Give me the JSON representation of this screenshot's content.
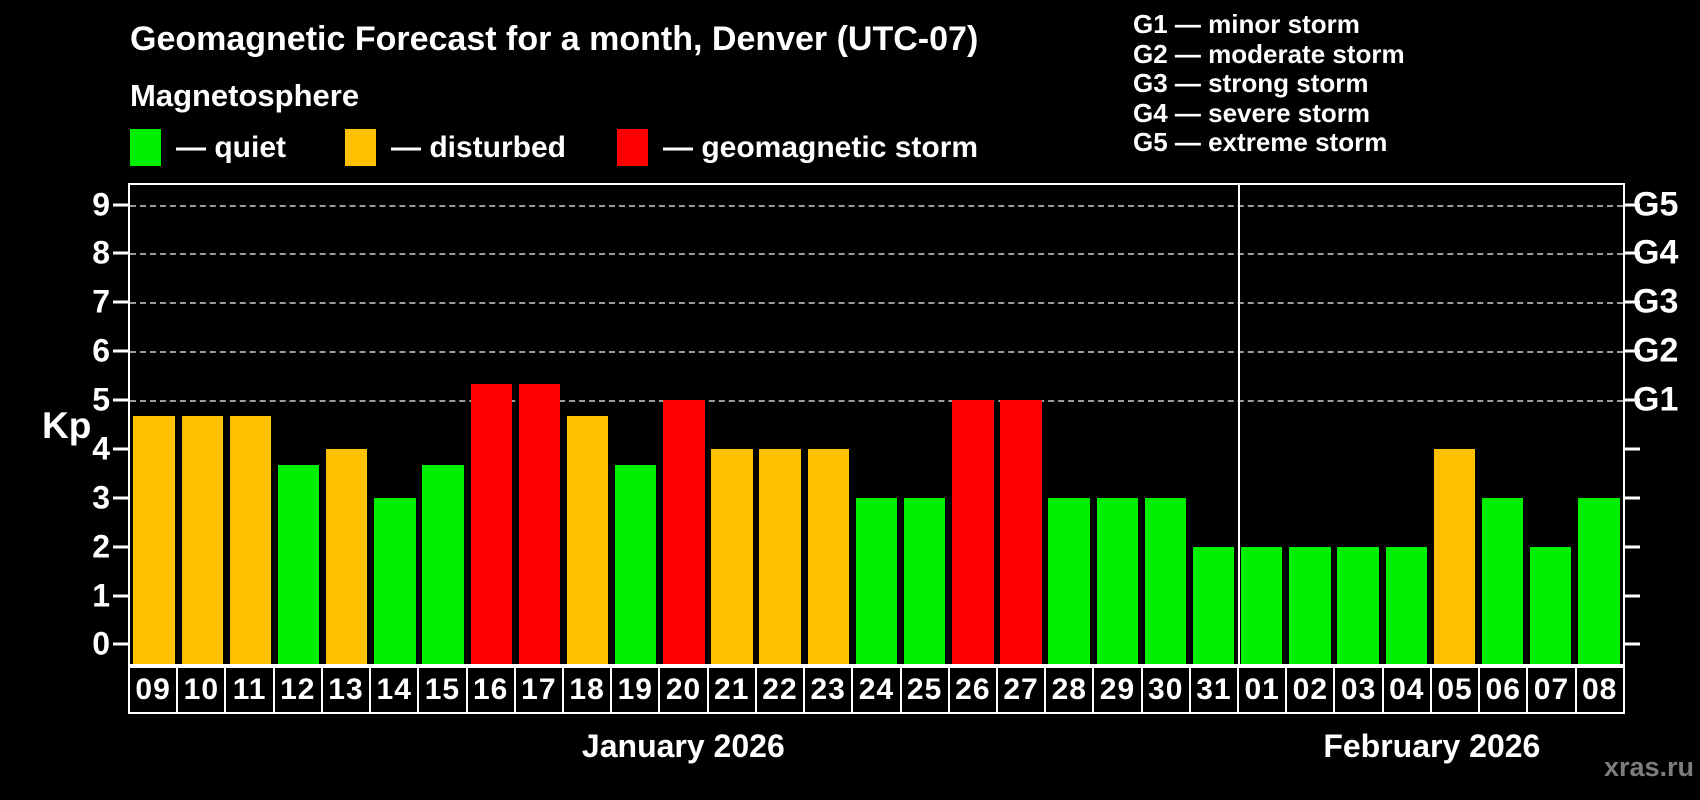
{
  "title": "Geomagnetic Forecast for a month, Denver (UTC-07)",
  "subtitle": "Magnetosphere",
  "legend": {
    "items": [
      {
        "key": "quiet",
        "label": "— quiet",
        "color": "#00ee00"
      },
      {
        "key": "disturbed",
        "label": "— disturbed",
        "color": "#ffc000"
      },
      {
        "key": "storm",
        "label": "— geomagnetic storm",
        "color": "#ff0000"
      }
    ]
  },
  "g_legend": [
    "G1 — minor storm",
    "G2 — moderate storm",
    "G3 — strong storm",
    "G4 — severe storm",
    "G5 — extreme storm"
  ],
  "watermark": "xras.ru",
  "chart_data": {
    "type": "bar",
    "title": "Geomagnetic Forecast for a month, Denver (UTC-07)",
    "xlabel": "",
    "ylabel": "Kp",
    "ylim": [
      0,
      9
    ],
    "ylim_drawn": [
      -0.4,
      9.4
    ],
    "yticks": [
      0,
      1,
      2,
      3,
      4,
      5,
      6,
      7,
      8,
      9
    ],
    "gridlines_kp": [
      5,
      6,
      7,
      8,
      9
    ],
    "grid": "horizontal dashed lines at storm levels G1–G5",
    "legend_position": "top",
    "right_axis": [
      {
        "label": "G1",
        "kp": 5
      },
      {
        "label": "G2",
        "kp": 6
      },
      {
        "label": "G3",
        "kp": 7
      },
      {
        "label": "G4",
        "kp": 8
      },
      {
        "label": "G5",
        "kp": 9
      }
    ],
    "months": [
      {
        "label": "January 2026",
        "days": 23
      },
      {
        "label": "February 2026",
        "days": 8
      }
    ],
    "categories": [
      "09",
      "10",
      "11",
      "12",
      "13",
      "14",
      "15",
      "16",
      "17",
      "18",
      "19",
      "20",
      "21",
      "22",
      "23",
      "24",
      "25",
      "26",
      "27",
      "28",
      "29",
      "30",
      "31",
      "01",
      "02",
      "03",
      "04",
      "05",
      "06",
      "07",
      "08"
    ],
    "values": [
      4.67,
      4.67,
      4.67,
      3.67,
      4,
      3,
      3.67,
      5.33,
      5.33,
      4.67,
      3.67,
      5,
      4,
      4,
      4,
      3,
      3,
      5,
      5,
      3,
      3,
      3,
      2,
      2,
      2,
      2,
      2,
      4,
      3,
      2,
      3
    ],
    "statuses": [
      "disturbed",
      "disturbed",
      "disturbed",
      "quiet",
      "disturbed",
      "quiet",
      "quiet",
      "storm",
      "storm",
      "disturbed",
      "quiet",
      "storm",
      "disturbed",
      "disturbed",
      "disturbed",
      "quiet",
      "quiet",
      "storm",
      "storm",
      "quiet",
      "quiet",
      "quiet",
      "quiet",
      "quiet",
      "quiet",
      "quiet",
      "quiet",
      "disturbed",
      "quiet",
      "quiet",
      "quiet"
    ],
    "status_colors": {
      "quiet": "#00ee00",
      "disturbed": "#ffc000",
      "storm": "#ff0000"
    }
  }
}
